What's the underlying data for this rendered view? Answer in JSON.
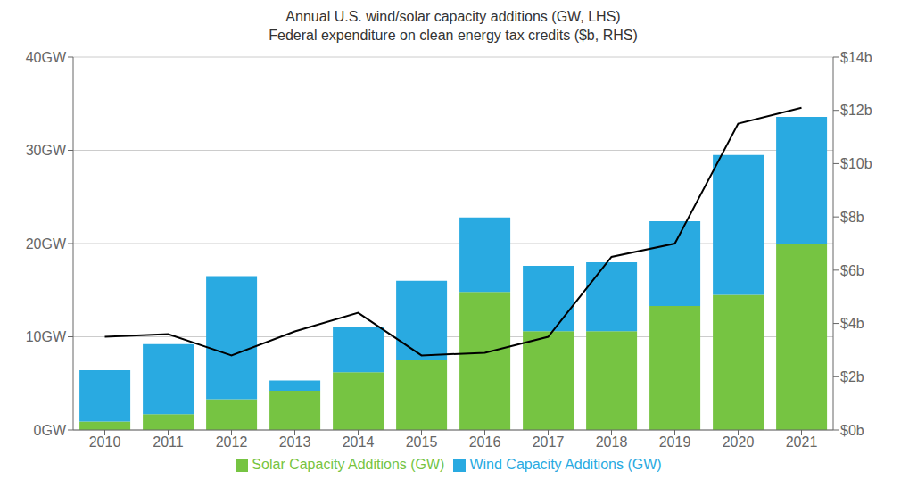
{
  "chart_data": {
    "type": "bar",
    "stacked": true,
    "title": "Annual U.S. wind/solar capacity additions (GW, LHS)",
    "subtitle": "Federal expenditure on clean energy tax credits ($b, RHS)",
    "categories": [
      "2010",
      "2011",
      "2012",
      "2013",
      "2014",
      "2015",
      "2016",
      "2017",
      "2018",
      "2019",
      "2020",
      "2021"
    ],
    "series": [
      {
        "name": "Solar Capacity Additions (GW)",
        "color": "#76c442",
        "values": [
          0.9,
          1.7,
          3.3,
          4.2,
          6.2,
          7.5,
          14.8,
          10.6,
          10.6,
          13.3,
          14.5,
          20.0
        ]
      },
      {
        "name": "Wind Capacity Additions (GW)",
        "color": "#29aae1",
        "values": [
          5.5,
          7.5,
          13.2,
          1.1,
          4.9,
          8.5,
          8.0,
          7.0,
          7.4,
          9.1,
          15.0,
          13.6
        ]
      },
      {
        "type": "line",
        "axis": "y2",
        "color": "#000000",
        "values": [
          3.5,
          3.6,
          2.8,
          3.7,
          4.4,
          2.8,
          2.9,
          3.5,
          6.5,
          7.0,
          11.5,
          12.1
        ]
      }
    ],
    "ylim": [
      0,
      40
    ],
    "yticks": [
      {
        "value": 0,
        "label": "0GW"
      },
      {
        "value": 10,
        "label": "10GW"
      },
      {
        "value": 20,
        "label": "20GW"
      },
      {
        "value": 30,
        "label": "30GW"
      },
      {
        "value": 40,
        "label": "40GW"
      }
    ],
    "y2lim": [
      0,
      14
    ],
    "y2ticks": [
      {
        "value": 0,
        "label": "$0b"
      },
      {
        "value": 2,
        "label": "$2b"
      },
      {
        "value": 4,
        "label": "$4b"
      },
      {
        "value": 6,
        "label": "$6b"
      },
      {
        "value": 8,
        "label": "$8b"
      },
      {
        "value": 10,
        "label": "$10b"
      },
      {
        "value": 12,
        "label": "$12b"
      },
      {
        "value": 14,
        "label": "$14b"
      }
    ],
    "grid": true,
    "legend": "bottom"
  }
}
